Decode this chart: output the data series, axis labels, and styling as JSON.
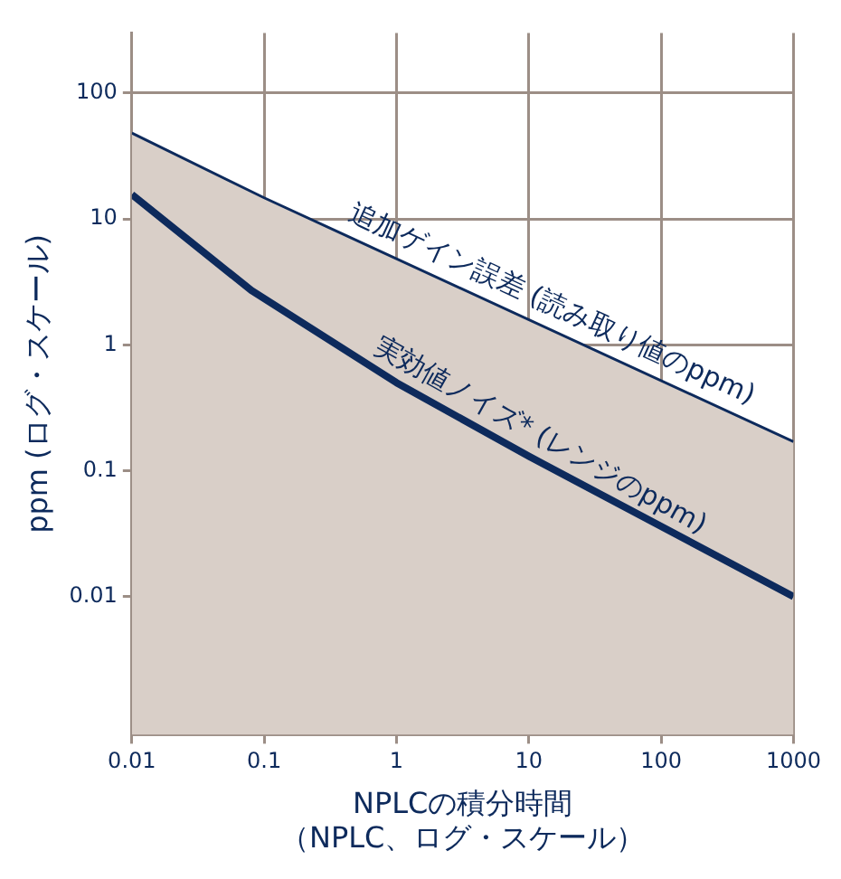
{
  "chart_data": {
    "type": "line",
    "xlabel": "NPLCの積分時間（NPLC、ログ・スケール）",
    "ylabel": "ppm (ログ・スケール)",
    "log": "xy",
    "grid": true,
    "legend": false,
    "marker": "none",
    "line_style": "solid",
    "xlim": [
      0.01,
      1000
    ],
    "xticks": [
      0.01,
      0.1,
      1,
      10,
      100,
      1000
    ],
    "ylim": [
      0.0008,
      300
    ],
    "yticks": [
      0.01,
      0.1,
      1,
      10,
      100
    ],
    "series": [
      {
        "name": "追加ゲイン誤差 (読み取り値のppm)",
        "type": "area",
        "color": "#d9cfc8",
        "x": [
          0.01,
          0.1,
          1000
        ],
        "values": [
          48,
          14.7,
          0.17
        ]
      },
      {
        "name": "実効値ノイズ* (レンジのppm)",
        "color": "#0d2a5c",
        "x": [
          0.01,
          0.08,
          1,
          10,
          1000
        ],
        "values": [
          15.6,
          2.7,
          0.5,
          0.13,
          0.01
        ]
      }
    ]
  }
}
